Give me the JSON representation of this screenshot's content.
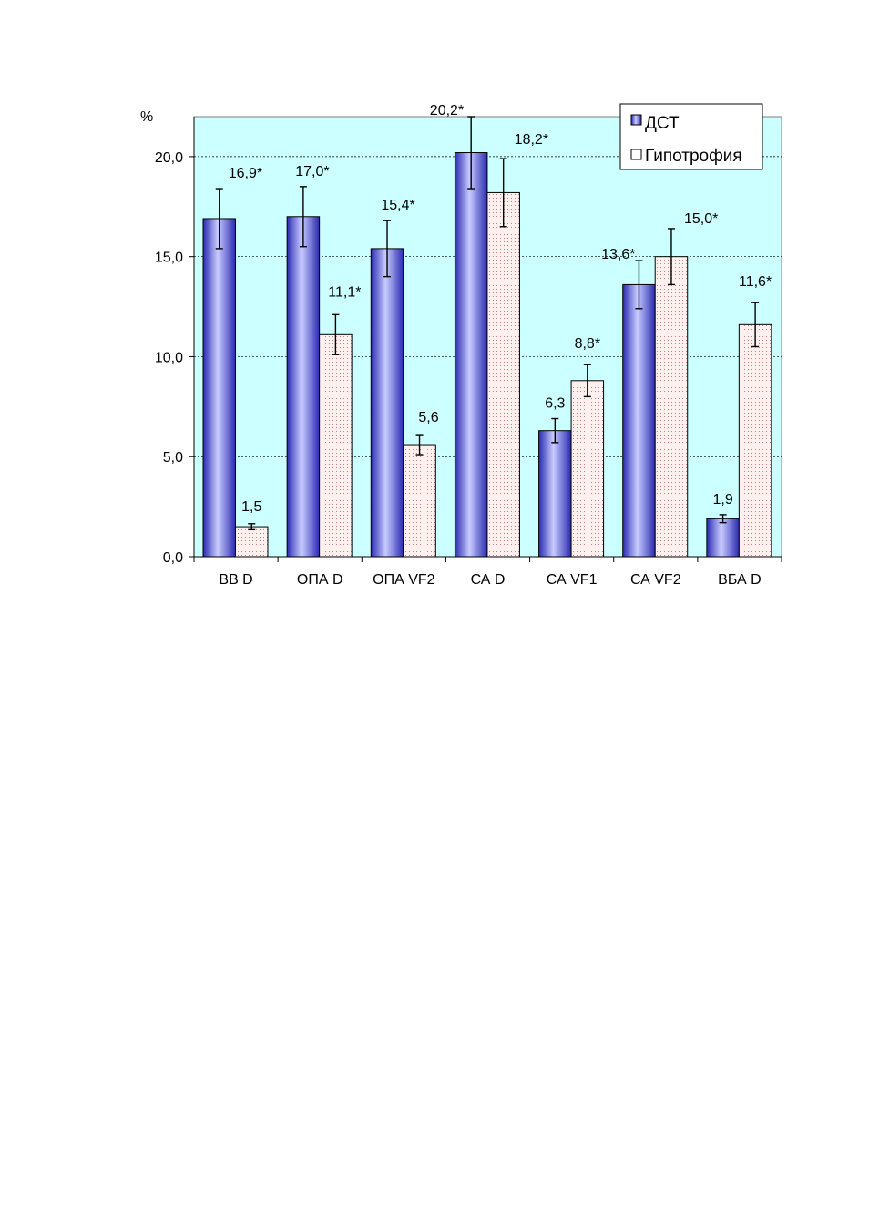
{
  "chart_data": {
    "type": "bar",
    "ylabel": "%",
    "ylim": [
      0,
      22
    ],
    "yticks": [
      0,
      5,
      10,
      15,
      20
    ],
    "ytick_labels": [
      "0,0",
      "5,0",
      "10,0",
      "15,0",
      "20,0"
    ],
    "grid": true,
    "legend_placement": "top-right",
    "plot_background": "#ccffff",
    "categories": [
      "ВВ D",
      "ОПА D",
      "ОПА VF2",
      "СА D",
      "СА VF1",
      "СА VF2",
      "ВБА D"
    ],
    "series": [
      {
        "name": "ДСТ",
        "color": "#5a5aee",
        "values": [
          16.9,
          17.0,
          15.4,
          20.2,
          6.3,
          13.6,
          1.9
        ],
        "errors": [
          1.5,
          1.5,
          1.4,
          1.8,
          0.6,
          1.2,
          0.2
        ],
        "labels": [
          "16,9*",
          "17,0*",
          "15,4*",
          "20,2*",
          "6,3",
          "13,6*",
          "1,9"
        ]
      },
      {
        "name": "Гипотрофия",
        "color": "#fff0f0",
        "values": [
          1.5,
          11.1,
          5.6,
          18.2,
          8.8,
          15.0,
          11.6
        ],
        "errors": [
          0.15,
          1.0,
          0.5,
          1.7,
          0.8,
          1.4,
          1.1
        ],
        "labels": [
          "1,5",
          "11,1*",
          "5,6",
          "18,2*",
          "8,8*",
          "15,0*",
          "11,6*"
        ]
      }
    ]
  }
}
